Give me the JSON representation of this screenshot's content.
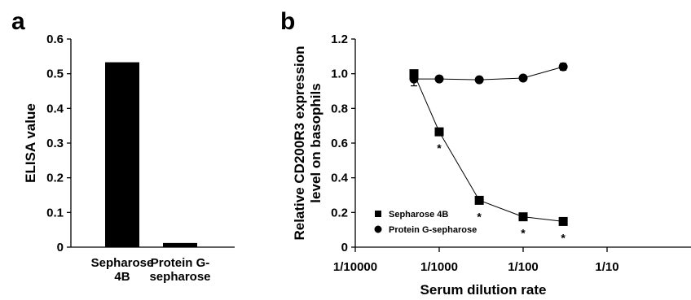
{
  "chart_data": [
    {
      "panel": "a",
      "type": "bar",
      "categories": [
        [
          "Sepharose",
          "4B"
        ],
        [
          "Protein G-",
          "sepharose"
        ]
      ],
      "values": [
        0.533,
        0.012
      ],
      "ylabel": "ELISA value",
      "xlabel": "",
      "ylim": [
        0,
        0.6
      ],
      "yticks": [
        "0",
        "0.1",
        "0.2",
        "0.3",
        "0.4",
        "0.5",
        "0.6"
      ],
      "bar_color": "#000000"
    },
    {
      "panel": "b",
      "type": "line",
      "xscale": "log",
      "xlabel": "Serum dilution rate",
      "ylabel": [
        "Relative CD200R3 expression",
        "level on basophils"
      ],
      "xlim": [
        0.0001,
        1
      ],
      "ylim": [
        0,
        1.2
      ],
      "xticks": [
        {
          "value": 0.0001,
          "label": "1/10000"
        },
        {
          "value": 0.001,
          "label": "1/1000"
        },
        {
          "value": 0.01,
          "label": "1/100"
        },
        {
          "value": 0.1,
          "label": "1/10"
        }
      ],
      "yticks": [
        "0",
        "0.2",
        "0.4",
        "0.6",
        "0.8",
        "1.0",
        "1.2"
      ],
      "x": [
        0.0005,
        0.001,
        0.003,
        0.01,
        0.03
      ],
      "series": [
        {
          "name": "Sepharose 4B",
          "marker": "square",
          "values": [
            1.0,
            0.665,
            0.27,
            0.175,
            0.148
          ],
          "errors": [
            0.02,
            0.01,
            0.01,
            0.01,
            0.01
          ],
          "significant": [
            false,
            true,
            true,
            true,
            true
          ]
        },
        {
          "name": "Protein G-sepharose",
          "marker": "circle",
          "values": [
            0.97,
            0.97,
            0.965,
            0.975,
            1.04
          ],
          "errors": [
            0.04,
            0.01,
            0.01,
            0.01,
            0.02
          ],
          "significant": [
            false,
            false,
            false,
            false,
            false
          ]
        }
      ],
      "significance_marker": "*",
      "legend_position": "bottom-left"
    }
  ]
}
